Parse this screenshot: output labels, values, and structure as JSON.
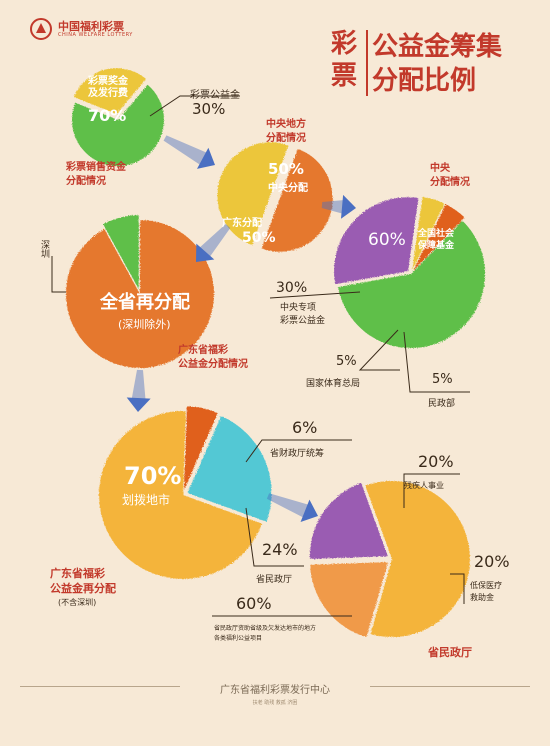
{
  "header": {
    "logo_text": "中国福利彩票",
    "logo_sub": "CHINA WELFARE LOTTERY",
    "title_side": [
      "彩",
      "票"
    ],
    "title_lines": [
      "公益金筹集",
      "分配比例"
    ]
  },
  "footer": {
    "org": "广东省福利彩票发行中心",
    "slogan": "扶老  助残  救孤  济困"
  },
  "colors": {
    "background": "#f7e9d6",
    "green": "#5fbf4a",
    "yellow": "#ecc63a",
    "orange": "#e5782e",
    "dark_orange": "#e0601f",
    "purple": "#9a5bb2",
    "teal": "#52c8d4",
    "peach": "#f09a4a",
    "gold": "#f4b43a",
    "arrow": "#4a6fc2",
    "title_red": "#c2392b"
  },
  "chart_data": [
    {
      "type": "pie",
      "title": "彩票销售资金分配情况",
      "slices": [
        {
          "label": "彩票奖金及发行费",
          "value": 70
        },
        {
          "label": "彩票公益金",
          "value": 30
        }
      ]
    },
    {
      "type": "pie",
      "title": "中央地方分配情况",
      "slices": [
        {
          "label": "中央分配",
          "value": 50
        },
        {
          "label": "广东分配",
          "value": 50
        }
      ]
    },
    {
      "type": "pie",
      "title": "中央分配情况",
      "slices": [
        {
          "label": "全国社会保障基金",
          "value": 60
        },
        {
          "label": "中央专项彩票公益金",
          "value": 30
        },
        {
          "label": "国家体育总局",
          "value": 5
        },
        {
          "label": "民政部",
          "value": 5
        }
      ]
    },
    {
      "type": "pie",
      "title": "广东省福彩公益金分配情况",
      "slices": [
        {
          "label": "全省再分配(深圳除外)"
        },
        {
          "label": "深圳"
        }
      ]
    },
    {
      "type": "pie",
      "title": "广东省福彩公益金再分配(不含深圳)",
      "slices": [
        {
          "label": "划拨地市",
          "value": 70
        },
        {
          "label": "省财政厅统筹",
          "value": 6
        },
        {
          "label": "省民政厅",
          "value": 24
        }
      ]
    },
    {
      "type": "pie",
      "title": "省民政厅",
      "slices": [
        {
          "label": "省民政厅资助省级及欠发达地市的地方各类福利公益项目",
          "value": 60
        },
        {
          "label": "残疾人事业",
          "value": 20
        },
        {
          "label": "低保医疗救助金",
          "value": 20
        }
      ]
    }
  ],
  "labels": {
    "p1_big": "彩票奖金\n及发行费",
    "p1_big_pct": "70%",
    "p1_small": "彩票公益金",
    "p1_small_pct": "30%",
    "p1_caption": [
      "彩票销售资金",
      "分配情况"
    ],
    "p2_caption": [
      "中央地方",
      "分配情况"
    ],
    "p2_top_pct": "50%",
    "p2_top": "中央分配",
    "p2_bottom": "广东分配",
    "p2_bottom_pct": "50%",
    "p3_caption": [
      "中央",
      "分配情况"
    ],
    "p3_big_pct": "60%",
    "p3_big": [
      "全国社会",
      "保障基金"
    ],
    "p3_purple_pct": "30%",
    "p3_purple": [
      "中央专项",
      "彩票公益金"
    ],
    "p3_yellow_pct": "5%",
    "p3_yellow": "国家体育总局",
    "p3_red_pct": "5%",
    "p3_red": "民政部",
    "p4_side": "深圳",
    "p4_main": "全省再分配",
    "p4_sub": "(深圳除外)",
    "p4_caption": [
      "广东省福彩",
      "公益金分配情况"
    ],
    "p5_big_pct": "70%",
    "p5_big": "划拨地市",
    "p5_red_pct": "6%",
    "p5_red": "省财政厅统筹",
    "p5_teal_pct": "24%",
    "p5_teal": "省民政厅",
    "p5_caption": [
      "广东省福彩",
      "公益金再分配"
    ],
    "p5_note": "(不含深圳)",
    "p6_peach_pct": "20%",
    "p6_peach": "残疾人事业",
    "p6_purple_pct": "20%",
    "p6_purple": [
      "低保医疗",
      "救助金"
    ],
    "p6_big_pct": "60%",
    "p6_big": [
      "省民政厅资助省级及欠发达地市的地方",
      "各类福利公益项目"
    ],
    "p6_caption": "省民政厅"
  }
}
